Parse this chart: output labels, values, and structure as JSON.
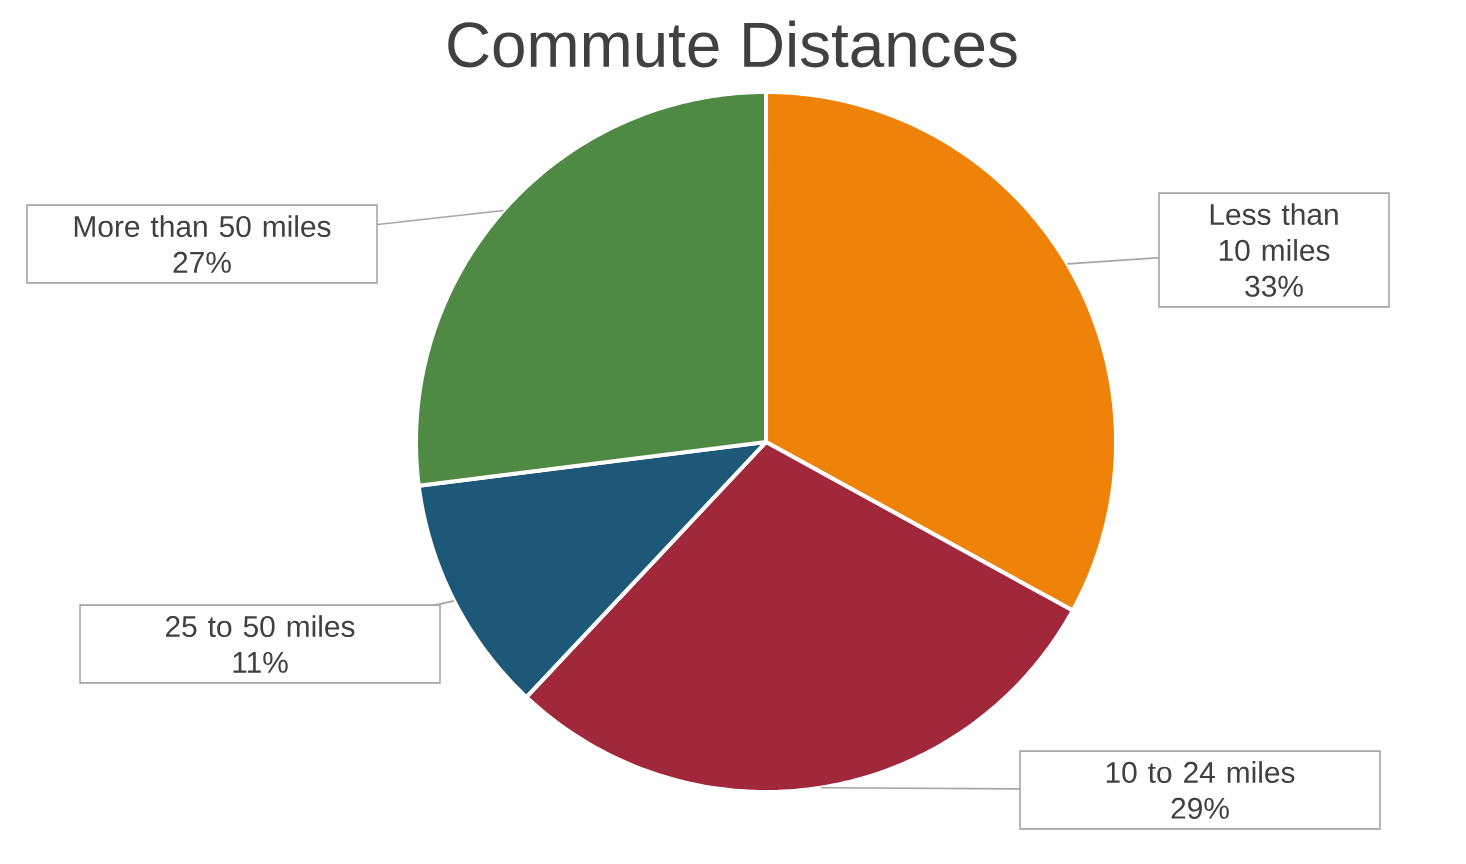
{
  "chart_data": {
    "type": "pie",
    "title": "Commute Distances",
    "categories": [
      "Less than 10 miles",
      "10 to 24 miles",
      "25 to 50 miles",
      "More than 50 miles"
    ],
    "values": [
      33,
      29,
      11,
      27
    ],
    "value_labels": [
      "33%",
      "29%",
      "11%",
      "27%"
    ],
    "colors": [
      "#ef8209",
      "#a0283a",
      "#1e5878",
      "#4e8a44"
    ]
  }
}
